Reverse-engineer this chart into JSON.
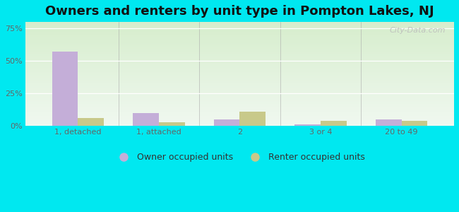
{
  "title": "Owners and renters by unit type in Pompton Lakes, NJ",
  "categories": [
    "1, detached",
    "1, attached",
    "2",
    "3 or 4",
    "20 to 49"
  ],
  "owner_values": [
    57,
    10,
    5,
    1,
    5
  ],
  "renter_values": [
    6,
    3,
    11,
    4,
    4
  ],
  "owner_color": "#c4aed8",
  "renter_color": "#c8c98a",
  "yticks": [
    0,
    25,
    50,
    75
  ],
  "ytick_labels": [
    "0%",
    "25%",
    "50%",
    "75%"
  ],
  "ylim": [
    0,
    80
  ],
  "bg_outer": "#00e8f0",
  "bg_plot_topleft": "#d6edcc",
  "bg_plot_bottomright": "#e8f8f0",
  "watermark": "City-Data.com",
  "legend_owner": "Owner occupied units",
  "legend_renter": "Renter occupied units",
  "title_fontsize": 13,
  "tick_fontsize": 8,
  "legend_fontsize": 9
}
